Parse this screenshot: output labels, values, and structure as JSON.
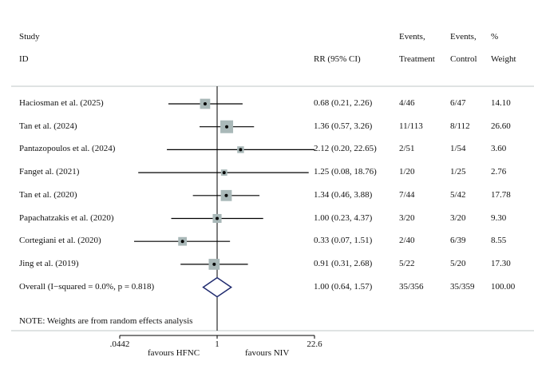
{
  "headers": {
    "study_line1": "Study",
    "study_line2": "ID",
    "rr": "RR (95% CI)",
    "ev_t1": "Events,",
    "ev_t2": "Treatment",
    "ev_c1": "Events,",
    "ev_c2": "Control",
    "w1": "%",
    "w2": "Weight"
  },
  "chart_data": {
    "type": "forest",
    "scale": "log",
    "xlim": [
      0.0442,
      22.6
    ],
    "xticks": [
      ".0442",
      "1",
      "22.6"
    ],
    "xtick_values": [
      0.0442,
      1,
      22.6
    ],
    "null_line": 1,
    "studies": [
      {
        "name": "Haciosman et al. (2025)",
        "rr": 0.68,
        "lo": 0.21,
        "hi": 2.26,
        "ci_text": "0.68 (0.21, 2.26)",
        "ev_t": "4/46",
        "ev_c": "6/47",
        "weight": 14.1,
        "weight_text": "14.10"
      },
      {
        "name": "Tan et al. (2024)",
        "rr": 1.36,
        "lo": 0.57,
        "hi": 3.26,
        "ci_text": "1.36 (0.57, 3.26)",
        "ev_t": "11/113",
        "ev_c": "8/112",
        "weight": 26.6,
        "weight_text": "26.60"
      },
      {
        "name": "Pantazopoulos et al. (2024)",
        "rr": 2.12,
        "lo": 0.2,
        "hi": 22.65,
        "ci_text": "2.12 (0.20, 22.65)",
        "ev_t": "2/51",
        "ev_c": "1/54",
        "weight": 3.6,
        "weight_text": "3.60"
      },
      {
        "name": "Fanget al. (2021)",
        "rr": 1.25,
        "lo": 0.08,
        "hi": 18.76,
        "ci_text": "1.25 (0.08, 18.76)",
        "ev_t": "1/20",
        "ev_c": "1/25",
        "weight": 2.76,
        "weight_text": "2.76"
      },
      {
        "name": "Tan et al. (2020)",
        "rr": 1.34,
        "lo": 0.46,
        "hi": 3.88,
        "ci_text": "1.34 (0.46, 3.88)",
        "ev_t": "7/44",
        "ev_c": "5/42",
        "weight": 17.78,
        "weight_text": "17.78"
      },
      {
        "name": "Papachatzakis et al. (2020)",
        "rr": 1.0,
        "lo": 0.23,
        "hi": 4.37,
        "ci_text": "1.00 (0.23, 4.37)",
        "ev_t": "3/20",
        "ev_c": "3/20",
        "weight": 9.3,
        "weight_text": "9.30"
      },
      {
        "name": "Cortegiani et al. (2020)",
        "rr": 0.33,
        "lo": 0.07,
        "hi": 1.51,
        "ci_text": "0.33 (0.07, 1.51)",
        "ev_t": "2/40",
        "ev_c": "6/39",
        "weight": 8.55,
        "weight_text": "8.55"
      },
      {
        "name": "Jing et al. (2019)",
        "rr": 0.91,
        "lo": 0.31,
        "hi": 2.68,
        "ci_text": "0.91 (0.31, 2.68)",
        "ev_t": "5/22",
        "ev_c": "5/20",
        "weight": 17.3,
        "weight_text": "17.30"
      }
    ],
    "overall": {
      "name": "Overall  (I−squared = 0.0%, p = 0.818)",
      "rr": 1.0,
      "lo": 0.64,
      "hi": 1.57,
      "ci_text": "1.00 (0.64, 1.57)",
      "ev_t": "35/356",
      "ev_c": "35/359",
      "weight_text": "100.00"
    },
    "note": "NOTE: Weights are from random effects analysis",
    "favours_left": "favours HFNC",
    "favours_right": "favours NIV",
    "colors": {
      "box": "#a9b8b8",
      "diamond": "#1f2a6e",
      "line": "#000000"
    }
  }
}
